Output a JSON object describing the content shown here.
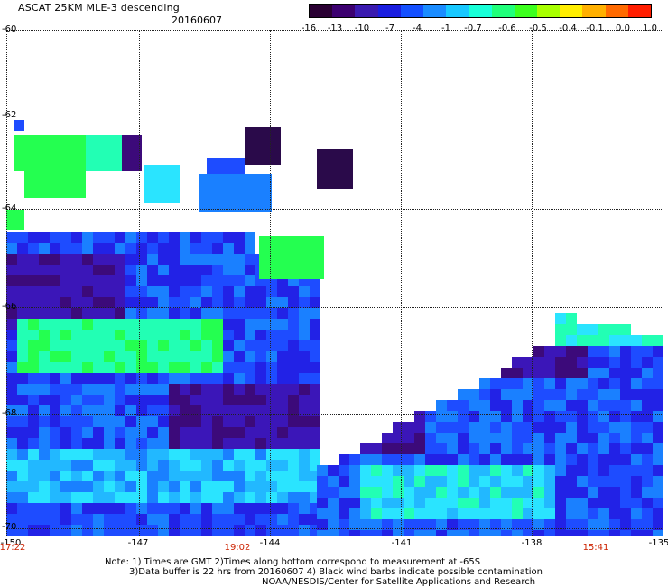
{
  "header": {
    "title": "ASCAT 25KM MLE-3 descending",
    "date": "20160607"
  },
  "colorbar": {
    "labels": [
      "-16",
      "-13",
      "-10",
      "-7",
      "-4",
      "-1",
      "-0.7",
      "-0.6",
      "-0.5",
      "-0.4",
      "-0.1",
      "0.0",
      "1.0"
    ],
    "colors": [
      "#2a0033",
      "#3c0070",
      "#3a1ab0",
      "#1a1ee0",
      "#1450ff",
      "#1a8cff",
      "#18c8ff",
      "#18ffd8",
      "#20ff7a",
      "#3cff1e",
      "#a8ff00",
      "#ffee00",
      "#ffb000",
      "#ff6a00",
      "#ff1e00"
    ]
  },
  "map": {
    "y_axis_labels": [
      "-60",
      "-62",
      "-64",
      "-66",
      "-68",
      "-70"
    ],
    "x_axis_labels": [
      "-150",
      "-147",
      "-144",
      "-141",
      "-138",
      "-135"
    ],
    "time_labels": [
      "17:22",
      "19:02",
      "15:41"
    ]
  },
  "footer": {
    "note_line1": "Note: 1) Times are GMT 2)Times along bottom correspond to measurement at -65S",
    "note_line2": "3)Data buffer is 22 hrs from 20160607 4) Black wind barbs indicate possible contamination",
    "note_line3": "NOAA/NESDIS/Center for Satellite Applications and Research"
  }
}
